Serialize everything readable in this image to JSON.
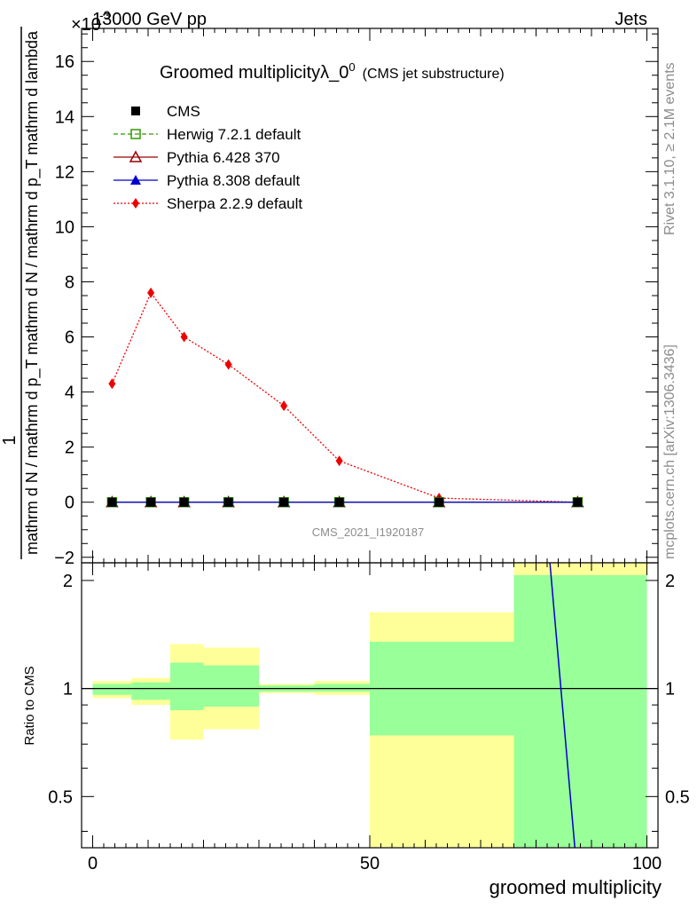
{
  "header": {
    "left": "13000 GeV pp",
    "right": "Jets",
    "exponent": "×10",
    "exponent_power": "-3"
  },
  "side_text": {
    "rivet": "Rivet 3.1.10, ≥ 2.1M events",
    "mcplots": "mcplots.cern.ch [arXiv:1306.3436]"
  },
  "watermark": "CMS_2021_I1920187",
  "chart_data": [
    {
      "type": "line",
      "title": "Groomed multiplicity",
      "title_symbol": "λ_0",
      "title_sup": "0",
      "subtitle": "(CMS jet substructure)",
      "ylabel": "1 / mathrm d N / mathrm d p_T mathrm d N / mathrm d p_T mathrm d lambda",
      "ylabel_parts": {
        "numerator": "1",
        "denominator": "mathrm d N / mathrm d p_T mathrm d N / mathrm d p_T mathrm d lambda"
      },
      "ylim": [
        -2.2,
        17.2
      ],
      "xlim": [
        -2,
        102
      ],
      "yticks": [
        -2,
        0,
        2,
        4,
        6,
        8,
        10,
        12,
        14,
        16
      ],
      "x": [
        3.5,
        10.5,
        16.5,
        24.5,
        34.5,
        44.5,
        62.5,
        87.5
      ],
      "legend_position": "top-left",
      "series": [
        {
          "name": "CMS",
          "color": "#000000",
          "marker": "square-filled",
          "line": "none",
          "values": [
            0,
            0,
            0,
            0,
            0,
            0,
            0,
            0
          ]
        },
        {
          "name": "Herwig 7.2.1 default",
          "color": "#339900",
          "marker": "square-open",
          "line": "dashed",
          "values": [
            0,
            0,
            0,
            0,
            0,
            0,
            0,
            0
          ]
        },
        {
          "name": "Pythia 6.428 370",
          "color": "#990000",
          "marker": "triangle-open",
          "line": "solid",
          "values": [
            0,
            0,
            0,
            0,
            0,
            0,
            0,
            0
          ]
        },
        {
          "name": "Pythia 8.308 default",
          "color": "#0000cc",
          "marker": "triangle-filled",
          "line": "solid",
          "values": [
            0,
            0,
            0,
            0,
            0,
            0,
            0,
            0
          ]
        },
        {
          "name": "Sherpa 2.2.9 default",
          "color": "#ee0000",
          "marker": "diamond-filled",
          "line": "dotted",
          "values": [
            4.3,
            7.6,
            6.0,
            5.0,
            3.5,
            1.5,
            0.15,
            0.0
          ]
        }
      ]
    },
    {
      "type": "area",
      "ylabel": "Ratio to CMS",
      "xlabel": "groomed multiplicity",
      "xlim": [
        -2,
        102
      ],
      "ylim": [
        0.36,
        2.24
      ],
      "yticks": [
        0.5,
        1,
        2
      ],
      "xticks": [
        0,
        50,
        100
      ],
      "bins": [
        {
          "x0": 0,
          "x1": 7,
          "green": [
            0.96,
            1.03
          ],
          "yellow": [
            0.94,
            1.05
          ]
        },
        {
          "x0": 7,
          "x1": 14,
          "green": [
            0.93,
            1.04
          ],
          "yellow": [
            0.9,
            1.07
          ]
        },
        {
          "x0": 14,
          "x1": 20,
          "green": [
            0.87,
            1.18
          ],
          "yellow": [
            0.72,
            1.33
          ]
        },
        {
          "x0": 20,
          "x1": 30,
          "green": [
            0.89,
            1.16
          ],
          "yellow": [
            0.77,
            1.3
          ]
        },
        {
          "x0": 30,
          "x1": 40,
          "green": [
            0.98,
            1.02
          ],
          "yellow": [
            0.97,
            1.03
          ]
        },
        {
          "x0": 40,
          "x1": 50,
          "green": [
            0.98,
            1.03
          ],
          "yellow": [
            0.96,
            1.05
          ]
        },
        {
          "x0": 50,
          "x1": 76,
          "green": [
            0.74,
            1.35
          ],
          "yellow": [
            0.36,
            1.63
          ]
        },
        {
          "x0": 76,
          "x1": 100,
          "green": [
            0.36,
            2.07
          ],
          "yellow": [
            0.36,
            2.24
          ]
        }
      ],
      "ratio_line": {
        "color": "#0000cc",
        "x": [
          82.5,
          87.0
        ],
        "y": [
          2.24,
          0.36
        ]
      }
    }
  ]
}
